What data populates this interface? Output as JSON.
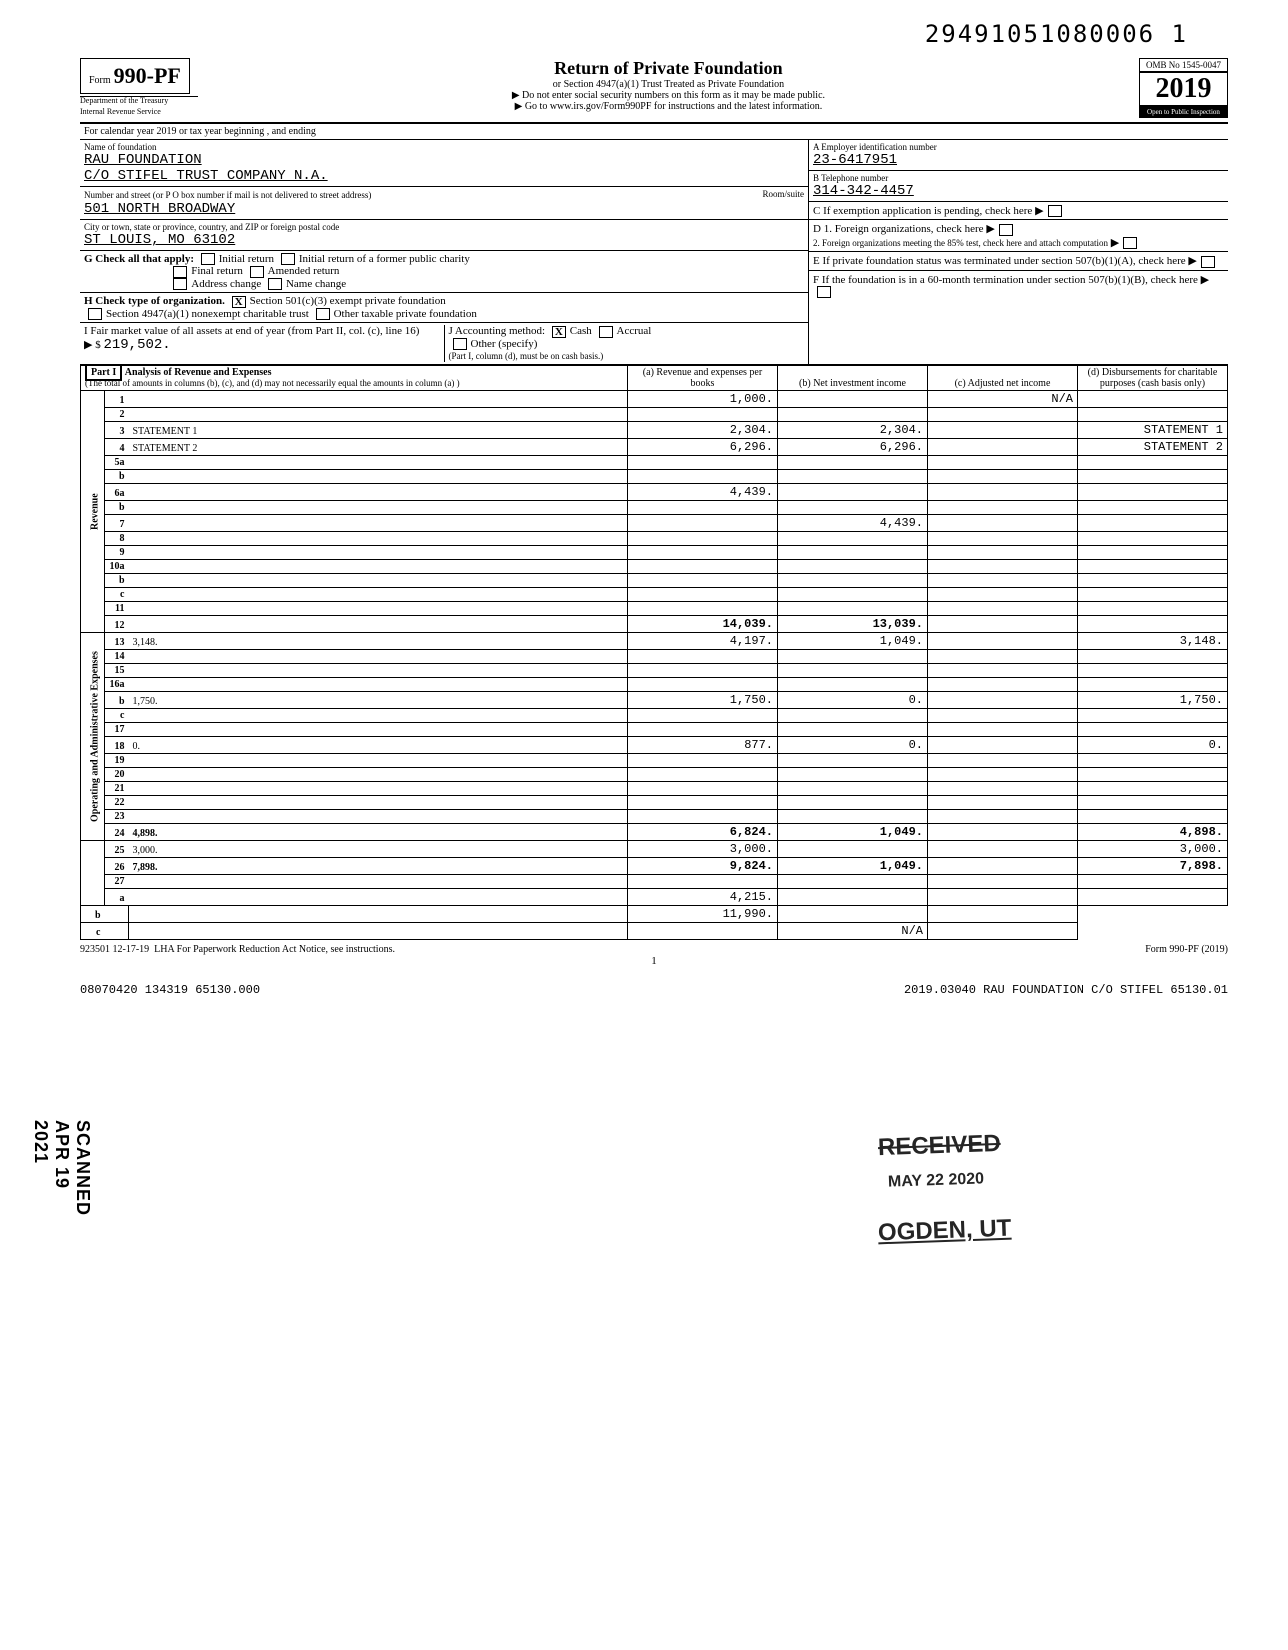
{
  "top_number": "29491051080006  1",
  "form": {
    "form_word": "Form",
    "form_number": "990-PF",
    "dept1": "Department of the Treasury",
    "dept2": "Internal Revenue Service",
    "title": "Return of Private Foundation",
    "subtitle1": "or Section 4947(a)(1) Trust Treated as Private Foundation",
    "subtitle2": "▶ Do not enter social security numbers on this form as it may be made public.",
    "subtitle3": "▶ Go to www.irs.gov/Form990PF for instructions and the latest information.",
    "omb": "OMB No 1545-0047",
    "year": "2019",
    "open": "Open to Public Inspection"
  },
  "calendar_line": "For calendar year 2019 or tax year beginning                              , and ending",
  "name_label": "Name of foundation",
  "name": "RAU FOUNDATION",
  "care_of": "C/O STIFEL TRUST COMPANY N.A.",
  "addr_label": "Number and street (or P O  box number if mail is not delivered to street address)",
  "address": "501 NORTH BROADWAY",
  "room_label": "Room/suite",
  "city_label": "City or town, state or province, country, and ZIP or foreign postal code",
  "city": "ST LOUIS, MO  63102",
  "ein_label": "A  Employer identification number",
  "ein": "23-6417951",
  "phone_label": "B  Telephone number",
  "phone": "314-342-4457",
  "c_label": "C  If exemption application is pending, check here",
  "g_label": "G  Check all that apply:",
  "g_opts": [
    "Initial return",
    "Final return",
    "Address change",
    "Initial return of a former public charity",
    "Amended return",
    "Name change"
  ],
  "d_label": "D  1. Foreign organizations, check here",
  "d2_label": "2. Foreign organizations meeting the 85% test, check here and attach computation",
  "h_label": "H  Check type of organization.",
  "h_opts": [
    "Section 501(c)(3) exempt private foundation",
    "Section 4947(a)(1) nonexempt charitable trust",
    "Other taxable private foundation"
  ],
  "h_checked": 0,
  "e_label": "E  If private foundation status was terminated under section 507(b)(1)(A), check here",
  "i_label": "I  Fair market value of all assets at end of year (from Part II, col. (c), line 16)",
  "i_value": "219,502.",
  "j_label": "J  Accounting method:",
  "j_opts": [
    "Cash",
    "Accrual",
    "Other (specify)"
  ],
  "j_checked": 0,
  "j_note": "(Part I, column (d), must be on cash basis.)",
  "f_label": "F  If the foundation is in a 60-month termination under section 507(b)(1)(B), check here",
  "part1": {
    "title": "Part I",
    "heading": "Analysis of Revenue and Expenses",
    "subhead": "(The total of amounts in columns (b), (c), and (d) may not necessarily equal the amounts in column (a) )",
    "col_a": "(a) Revenue and expenses per books",
    "col_b": "(b) Net investment income",
    "col_c": "(c) Adjusted net income",
    "col_d": "(d) Disbursements for charitable purposes (cash basis only)"
  },
  "side_revenue": "Revenue",
  "side_expenses": "Operating and Administrative Expenses",
  "rows": [
    {
      "n": "1",
      "d": "",
      "a": "1,000.",
      "b": "",
      "c": "N/A"
    },
    {
      "n": "2",
      "d": "",
      "a": "",
      "b": "",
      "c": ""
    },
    {
      "n": "3",
      "d": "STATEMENT 1",
      "a": "2,304.",
      "b": "2,304.",
      "c": ""
    },
    {
      "n": "4",
      "d": "STATEMENT 2",
      "a": "6,296.",
      "b": "6,296.",
      "c": ""
    },
    {
      "n": "5a",
      "d": "",
      "a": "",
      "b": "",
      "c": ""
    },
    {
      "n": "b",
      "d": "",
      "a": "",
      "b": "",
      "c": ""
    },
    {
      "n": "6a",
      "d": "",
      "a": "4,439.",
      "b": "",
      "c": ""
    },
    {
      "n": "b",
      "d": "",
      "a": "",
      "b": "",
      "c": ""
    },
    {
      "n": "7",
      "d": "",
      "a": "",
      "b": "4,439.",
      "c": ""
    },
    {
      "n": "8",
      "d": "",
      "a": "",
      "b": "",
      "c": ""
    },
    {
      "n": "9",
      "d": "",
      "a": "",
      "b": "",
      "c": ""
    },
    {
      "n": "10a",
      "d": "",
      "a": "",
      "b": "",
      "c": ""
    },
    {
      "n": "b",
      "d": "",
      "a": "",
      "b": "",
      "c": ""
    },
    {
      "n": "c",
      "d": "",
      "a": "",
      "b": "",
      "c": ""
    },
    {
      "n": "11",
      "d": "",
      "a": "",
      "b": "",
      "c": ""
    },
    {
      "n": "12",
      "d": "",
      "a": "14,039.",
      "b": "13,039.",
      "c": "",
      "total": true
    },
    {
      "n": "13",
      "d": "3,148.",
      "a": "4,197.",
      "b": "1,049.",
      "c": ""
    },
    {
      "n": "14",
      "d": "",
      "a": "",
      "b": "",
      "c": ""
    },
    {
      "n": "15",
      "d": "",
      "a": "",
      "b": "",
      "c": ""
    },
    {
      "n": "16a",
      "d": "",
      "a": "",
      "b": "",
      "c": ""
    },
    {
      "n": "b",
      "d": "1,750.",
      "a": "1,750.",
      "b": "0.",
      "c": ""
    },
    {
      "n": "c",
      "d": "",
      "a": "",
      "b": "",
      "c": ""
    },
    {
      "n": "17",
      "d": "",
      "a": "",
      "b": "",
      "c": ""
    },
    {
      "n": "18",
      "d": "0.",
      "a": "877.",
      "b": "0.",
      "c": ""
    },
    {
      "n": "19",
      "d": "",
      "a": "",
      "b": "",
      "c": ""
    },
    {
      "n": "20",
      "d": "",
      "a": "",
      "b": "",
      "c": ""
    },
    {
      "n": "21",
      "d": "",
      "a": "",
      "b": "",
      "c": ""
    },
    {
      "n": "22",
      "d": "",
      "a": "",
      "b": "",
      "c": ""
    },
    {
      "n": "23",
      "d": "",
      "a": "",
      "b": "",
      "c": ""
    },
    {
      "n": "24",
      "d": "4,898.",
      "a": "6,824.",
      "b": "1,049.",
      "c": "",
      "total": true
    },
    {
      "n": "25",
      "d": "3,000.",
      "a": "3,000.",
      "b": "",
      "c": ""
    },
    {
      "n": "26",
      "d": "7,898.",
      "a": "9,824.",
      "b": "1,049.",
      "c": "",
      "total": true
    },
    {
      "n": "27",
      "d": "",
      "a": "",
      "b": "",
      "c": ""
    },
    {
      "n": "a",
      "d": "",
      "a": "4,215.",
      "b": "",
      "c": ""
    },
    {
      "n": "b",
      "d": "",
      "a": "",
      "b": "11,990.",
      "c": ""
    },
    {
      "n": "c",
      "d": "",
      "a": "",
      "b": "",
      "c": "N/A"
    }
  ],
  "footer": {
    "code": "923501 12-17-19",
    "lha": "LHA  For Paperwork Reduction Act Notice, see instructions.",
    "form_ref": "Form 990-PF (2019)",
    "page": "1",
    "bottom_left": "08070420 134319 65130.000",
    "bottom_right": "2019.03040 RAU FOUNDATION C/O STIFEL 65130.01"
  },
  "stamps": {
    "received": "RECEIVED",
    "date": "MAY 22 2020",
    "ogden": "OGDEN, UT",
    "scanned": "SCANNED APR 19 2021"
  },
  "colors": {
    "text": "#000000",
    "bg": "#ffffff",
    "shade": "#e8e8e8"
  }
}
